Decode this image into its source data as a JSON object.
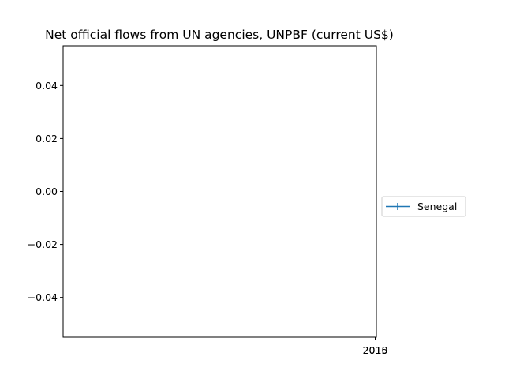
{
  "chart_data": {
    "type": "line",
    "title": "Net official flows from UN agencies, UNPBF (current US$)",
    "xlabel": "",
    "ylabel": "",
    "x_tick_labels": [
      "2010",
      "2015"
    ],
    "y_ticks": [
      0.04,
      0.02,
      0.0,
      -0.02,
      -0.04
    ],
    "y_tick_labels": [
      "0.04",
      "0.02",
      "0.00",
      "−0.02",
      "−0.04"
    ],
    "ylim": [
      -0.055,
      0.055
    ],
    "series": [
      {
        "name": "Senegal",
        "x": [],
        "y": [],
        "color": "#1f77b4",
        "marker": "+"
      }
    ],
    "legend_position": "center-right, outside plot",
    "grid": false
  }
}
